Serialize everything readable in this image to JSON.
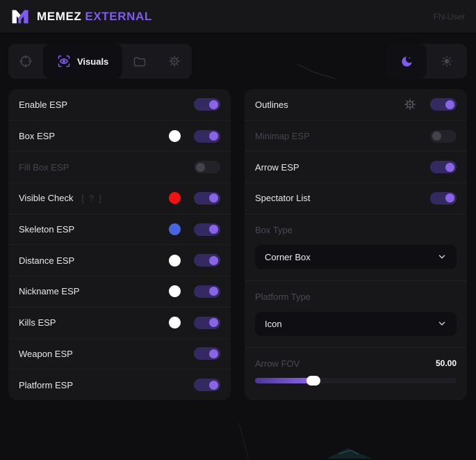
{
  "header": {
    "brand_name": "MEMEZ",
    "brand_suffix": "EXTERNAL",
    "user_label": "FN-User"
  },
  "tabbar": {
    "tabs": [
      {
        "id": "aimbot",
        "icon": "crosshair-icon",
        "label": "",
        "active": false
      },
      {
        "id": "visuals",
        "icon": "scan-eye-icon",
        "label": "Visuals",
        "active": true
      },
      {
        "id": "configs",
        "icon": "folder-icon",
        "label": "",
        "active": false
      },
      {
        "id": "settings",
        "icon": "gear-icon",
        "label": "",
        "active": false
      }
    ],
    "theme": {
      "selected": "dark",
      "options": [
        {
          "id": "dark",
          "icon": "moon-icon"
        },
        {
          "id": "light",
          "icon": "sun-icon"
        }
      ]
    }
  },
  "left_panel": {
    "rows": [
      {
        "label": "Enable ESP",
        "on": true
      },
      {
        "label": "Box ESP",
        "color": "#ffffff",
        "on": true
      },
      {
        "label": "Fill Box ESP",
        "on": false,
        "disabled": true
      },
      {
        "label": "Visible Check",
        "hint": "[ ? ]",
        "color": "#f31111",
        "on": true
      },
      {
        "label": "Skeleton ESP",
        "color": "#4664e4",
        "on": true
      },
      {
        "label": "Distance ESP",
        "color": "#ffffff",
        "on": true
      },
      {
        "label": "Nickname ESP",
        "color": "#ffffff",
        "on": true
      },
      {
        "label": "Kills ESP",
        "color": "#ffffff",
        "on": true
      },
      {
        "label": "Weapon ESP",
        "on": true
      },
      {
        "label": "Platform ESP",
        "on": true
      }
    ]
  },
  "right_panel": {
    "rows": [
      {
        "label": "Outlines",
        "gear": true,
        "on": true
      },
      {
        "label": "Minimap ESP",
        "on": false,
        "disabled": true
      },
      {
        "label": "Arrow ESP",
        "on": true
      },
      {
        "label": "Spectator List",
        "on": true
      }
    ],
    "selects": [
      {
        "label": "Box Type",
        "value": "Corner Box"
      },
      {
        "label": "Platform Type",
        "value": "Icon"
      }
    ],
    "slider": {
      "label": "Arrow FOV",
      "value": "50.00",
      "percent": 29
    }
  },
  "colors": {
    "accent": "#7e5cf0",
    "toggle_track_on": "#342a61",
    "toggle_knob_on": "#8a64e8",
    "swatch_white": "#ffffff",
    "swatch_red": "#f31111",
    "swatch_blue": "#4664e4"
  }
}
